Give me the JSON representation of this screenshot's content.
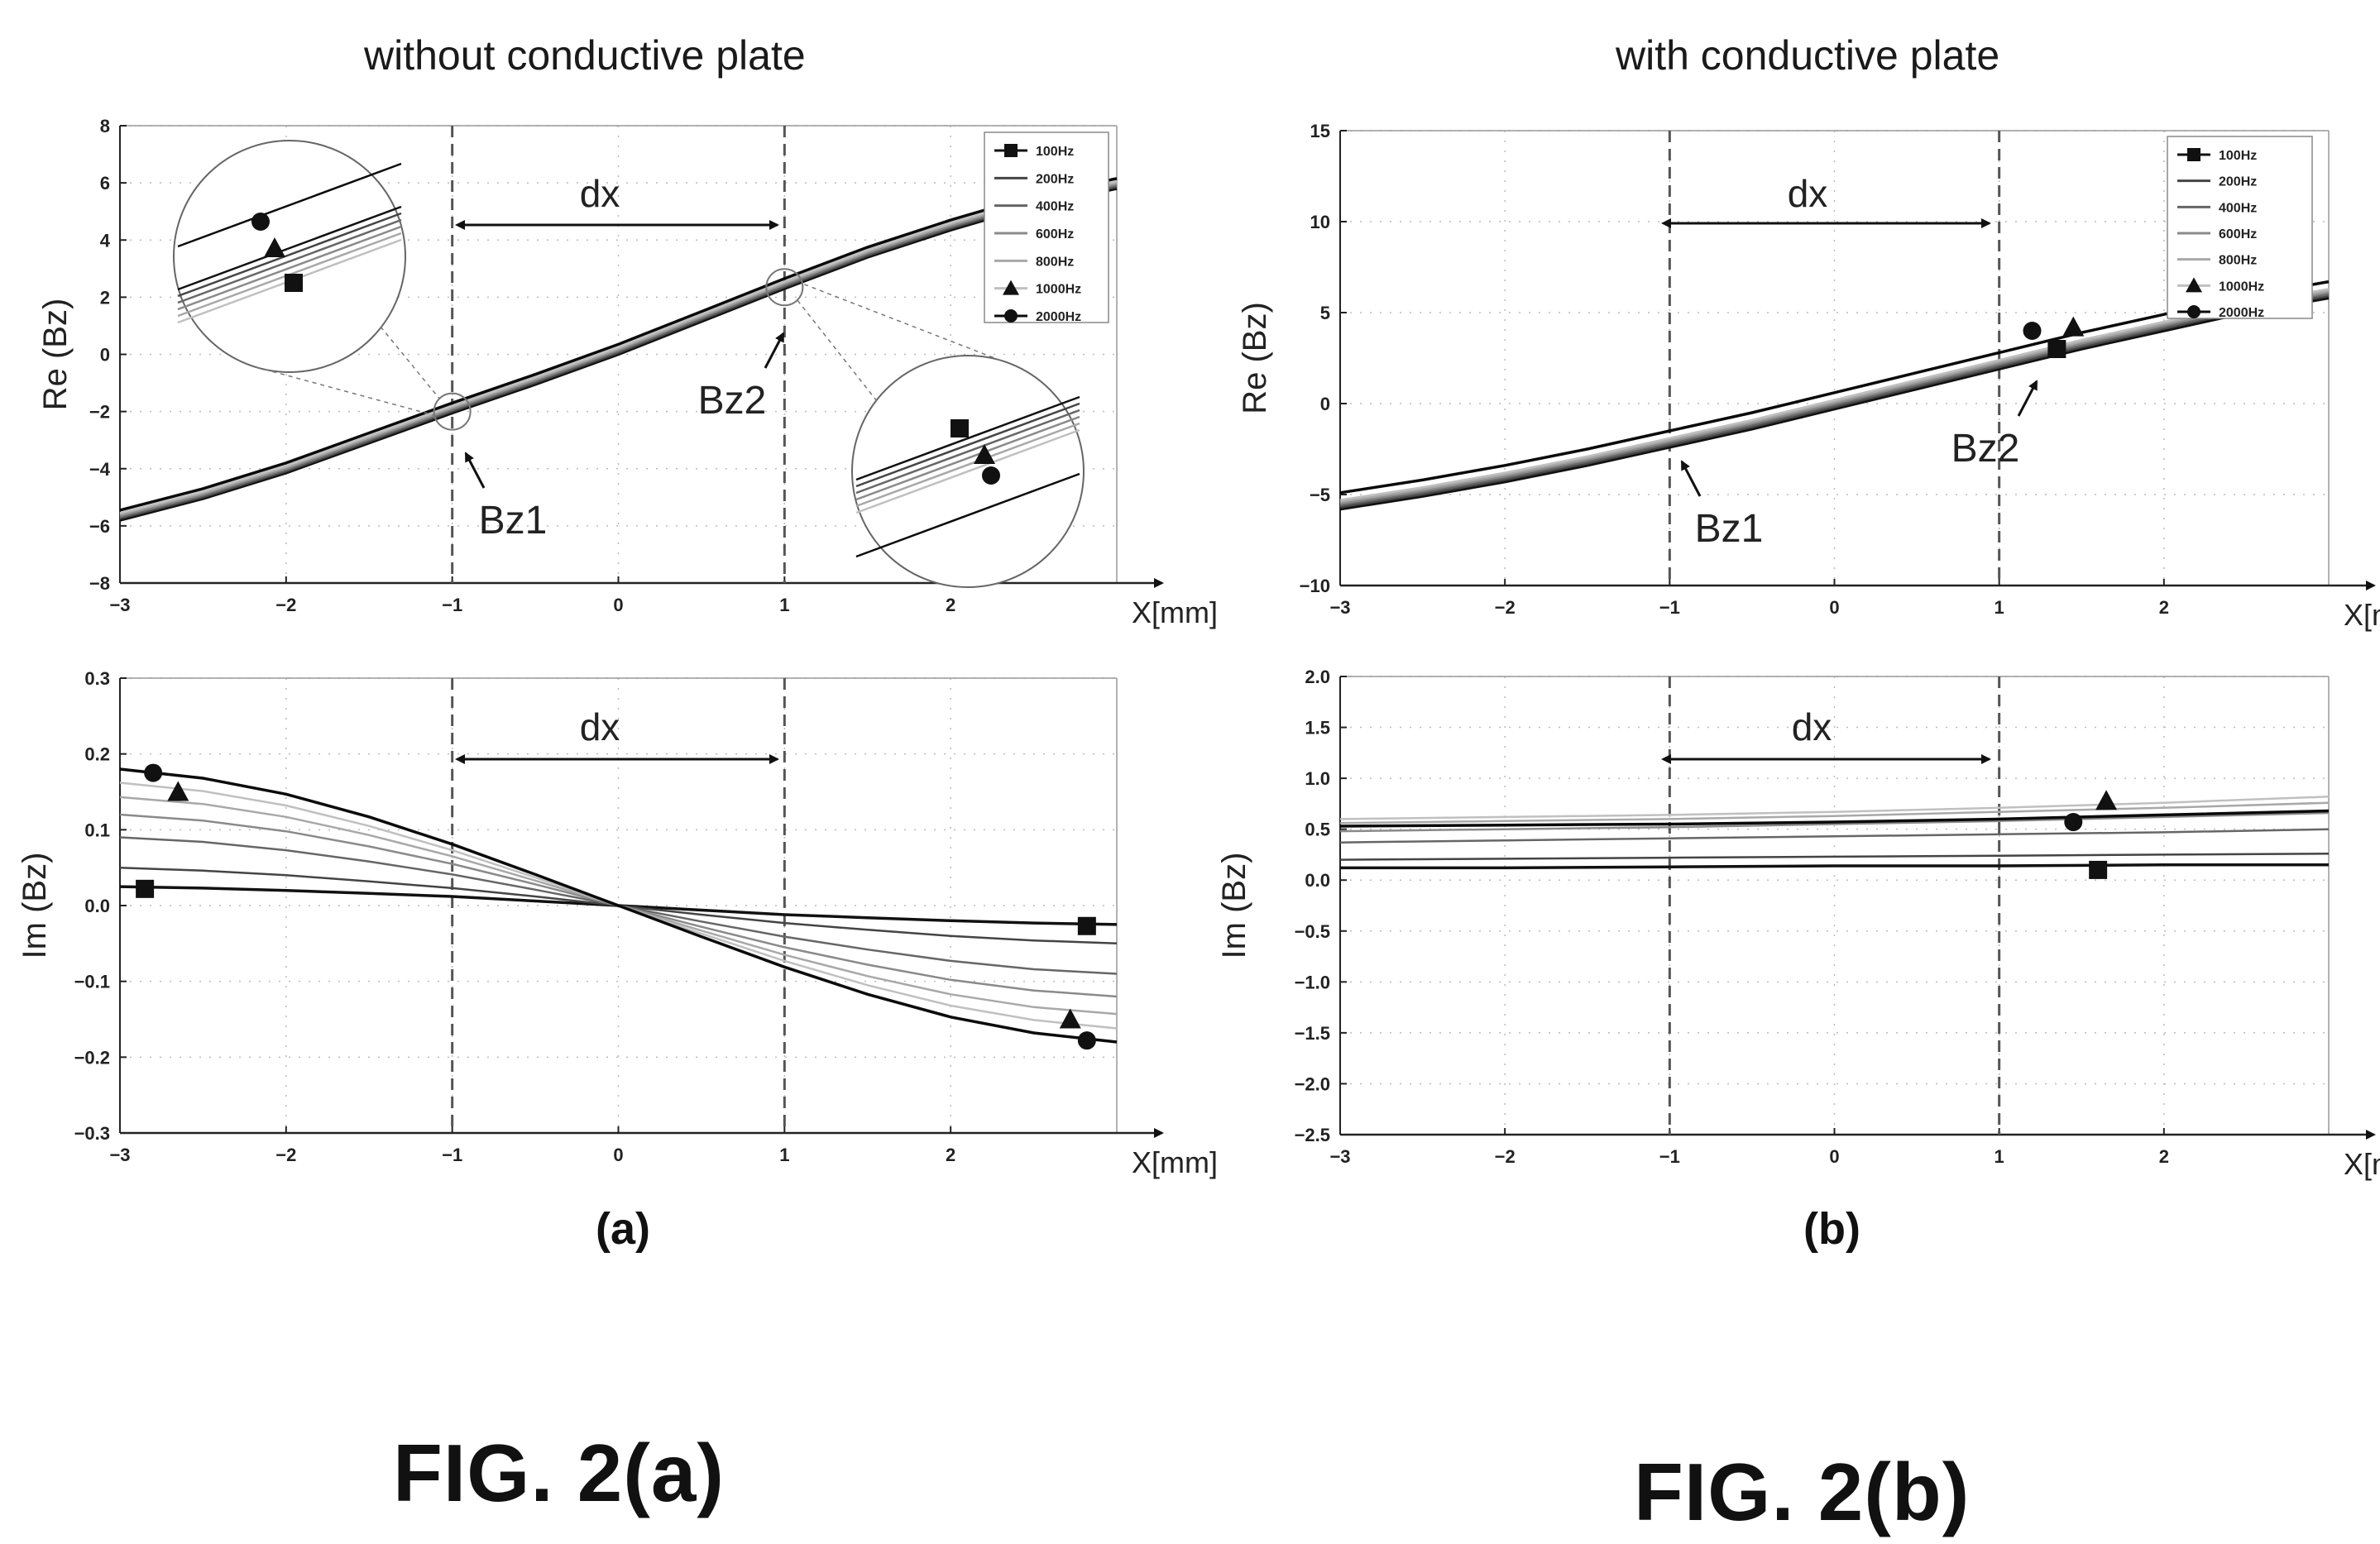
{
  "figure": {
    "left_heading": "without conductive plate",
    "right_heading": "with conductive plate",
    "panel_a_label": "(a)",
    "panel_b_label": "(b)",
    "fig_a_label": "FIG. 2(a)",
    "fig_b_label": "FIG. 2(b)"
  },
  "chart_data": [
    {
      "id": "a_re",
      "type": "line",
      "ylabel": "Re (Bz)",
      "xlabel": "X[mm]",
      "xlim": [
        -3,
        3
      ],
      "ylim": [
        -8,
        8
      ],
      "xticks": [
        -3,
        -2,
        -1,
        0,
        1,
        2
      ],
      "yticks": [
        -8,
        -6,
        -4,
        -2,
        0,
        2,
        4,
        6,
        8
      ],
      "legend": [
        "100Hz",
        "200Hz",
        "400Hz",
        "600Hz",
        "800Hz",
        "1000Hz",
        "2000Hz"
      ],
      "legend_position": "top-right",
      "x": [
        -3,
        -2.5,
        -2,
        -1.5,
        -1,
        -0.5,
        0,
        0.5,
        1,
        1.5,
        2,
        2.5,
        3
      ],
      "series": [
        {
          "name": "100Hz",
          "values": [
            -5.8,
            -5.05,
            -4.15,
            -3.1,
            -2.05,
            -1.05,
            0.0,
            1.15,
            2.3,
            3.4,
            4.35,
            5.2,
            5.8
          ]
        },
        {
          "name": "200Hz",
          "values": [
            -5.75,
            -5.0,
            -4.1,
            -3.05,
            -2.0,
            -1.0,
            0.05,
            1.2,
            2.35,
            3.45,
            4.4,
            5.25,
            5.85
          ]
        },
        {
          "name": "400Hz",
          "values": [
            -5.7,
            -4.95,
            -4.05,
            -3.0,
            -1.95,
            -0.95,
            0.1,
            1.25,
            2.4,
            3.5,
            4.45,
            5.3,
            5.9
          ]
        },
        {
          "name": "600Hz",
          "values": [
            -5.65,
            -4.9,
            -4.0,
            -2.95,
            -1.9,
            -0.9,
            0.15,
            1.3,
            2.45,
            3.55,
            4.5,
            5.35,
            5.95
          ]
        },
        {
          "name": "800Hz",
          "values": [
            -5.6,
            -4.85,
            -3.95,
            -2.9,
            -1.85,
            -0.85,
            0.2,
            1.35,
            2.5,
            3.6,
            4.55,
            5.4,
            6.0
          ]
        },
        {
          "name": "1000Hz",
          "values": [
            -5.55,
            -4.8,
            -3.9,
            -2.85,
            -1.8,
            -0.8,
            0.25,
            1.4,
            2.55,
            3.65,
            4.6,
            5.45,
            6.05
          ]
        },
        {
          "name": "2000Hz",
          "values": [
            -5.45,
            -4.7,
            -3.8,
            -2.75,
            -1.7,
            -0.7,
            0.35,
            1.5,
            2.65,
            3.75,
            4.7,
            5.55,
            6.15
          ]
        }
      ],
      "markers": [
        {
          "series": "100Hz",
          "shape": "square",
          "x": 2.02,
          "y": -2.5,
          "inset": "right"
        },
        {
          "series": "1000Hz",
          "shape": "triangle",
          "x": 2.2,
          "y": -3.4,
          "inset": "right"
        },
        {
          "series": "2000Hz",
          "shape": "circle",
          "x": 2.25,
          "y": -4.1,
          "inset": "right"
        },
        {
          "series": "100Hz",
          "shape": "square",
          "x": -1.77,
          "y": 1.9,
          "inset": "left"
        },
        {
          "series": "1000Hz",
          "shape": "triangle",
          "x": -1.85,
          "y": 3.0,
          "inset": "left"
        },
        {
          "series": "2000Hz",
          "shape": "circle",
          "x": -1.9,
          "y": 4.0,
          "inset": "left"
        }
      ],
      "vlines": [
        -1,
        1
      ],
      "annotations": {
        "dx": "dx",
        "bz1": "Bz1",
        "bz2": "Bz2"
      }
    },
    {
      "id": "a_im",
      "type": "line",
      "ylabel": "Im (Bz)",
      "xlabel": "X[mm]",
      "xlim": [
        -3,
        3
      ],
      "ylim": [
        -0.3,
        0.3
      ],
      "xticks": [
        -3,
        -2,
        -1,
        0,
        1,
        2
      ],
      "yticks": [
        -0.3,
        -0.2,
        -0.1,
        0.0,
        0.1,
        0.2,
        0.3
      ],
      "legend": [],
      "x": [
        -3,
        -2.5,
        -2,
        -1.5,
        -1,
        -0.5,
        0,
        0.5,
        1,
        1.5,
        2,
        2.5,
        3
      ],
      "series": [
        {
          "name": "100Hz",
          "values": [
            0.025,
            0.023,
            0.02,
            0.016,
            0.012,
            0.006,
            0.0,
            -0.006,
            -0.012,
            -0.016,
            -0.02,
            -0.023,
            -0.025
          ]
        },
        {
          "name": "200Hz",
          "values": [
            0.05,
            0.046,
            0.04,
            0.032,
            0.023,
            0.012,
            0.0,
            -0.012,
            -0.023,
            -0.032,
            -0.04,
            -0.046,
            -0.05
          ]
        },
        {
          "name": "400Hz",
          "values": [
            0.09,
            0.084,
            0.073,
            0.058,
            0.041,
            0.021,
            0.0,
            -0.021,
            -0.041,
            -0.058,
            -0.073,
            -0.084,
            -0.09
          ]
        },
        {
          "name": "600Hz",
          "values": [
            0.12,
            0.112,
            0.098,
            0.078,
            0.055,
            0.028,
            0.0,
            -0.028,
            -0.055,
            -0.078,
            -0.098,
            -0.112,
            -0.12
          ]
        },
        {
          "name": "800Hz",
          "values": [
            0.143,
            0.134,
            0.117,
            0.093,
            0.065,
            0.033,
            0.0,
            -0.033,
            -0.065,
            -0.093,
            -0.117,
            -0.134,
            -0.143
          ]
        },
        {
          "name": "1000Hz",
          "values": [
            0.162,
            0.151,
            0.132,
            0.105,
            0.073,
            0.037,
            0.0,
            -0.037,
            -0.073,
            -0.105,
            -0.132,
            -0.151,
            -0.162
          ]
        },
        {
          "name": "2000Hz",
          "values": [
            0.18,
            0.168,
            0.147,
            0.117,
            0.081,
            0.041,
            0.0,
            -0.041,
            -0.081,
            -0.117,
            -0.147,
            -0.168,
            -0.18
          ]
        }
      ],
      "markers": [
        {
          "series": "2000Hz",
          "shape": "circle",
          "x": -2.8,
          "y": 0.175
        },
        {
          "series": "1000Hz",
          "shape": "triangle",
          "x": -2.65,
          "y": 0.15
        },
        {
          "series": "100Hz",
          "shape": "square",
          "x": -2.85,
          "y": 0.022
        },
        {
          "series": "100Hz",
          "shape": "square",
          "x": 2.82,
          "y": -0.027
        },
        {
          "series": "1000Hz",
          "shape": "triangle",
          "x": 2.72,
          "y": -0.15
        },
        {
          "series": "2000Hz",
          "shape": "circle",
          "x": 2.82,
          "y": -0.178
        }
      ],
      "vlines": [
        -1,
        1
      ],
      "annotations": {
        "dx": "dx"
      }
    },
    {
      "id": "b_re",
      "type": "line",
      "ylabel": "Re (Bz)",
      "xlabel": "X[mm]",
      "xlim": [
        -3,
        3
      ],
      "ylim": [
        -10,
        15
      ],
      "xticks": [
        -3,
        -2,
        -1,
        0,
        1,
        2
      ],
      "yticks": [
        -10,
        -5,
        0,
        5,
        10,
        15
      ],
      "legend": [
        "100Hz",
        "200Hz",
        "400Hz",
        "600Hz",
        "800Hz",
        "1000Hz",
        "2000Hz"
      ],
      "legend_position": "top-right",
      "x": [
        -3,
        -2.5,
        -2,
        -1.5,
        -1,
        -0.5,
        0,
        0.5,
        1,
        1.5,
        2,
        2.5,
        3
      ],
      "series": [
        {
          "name": "100Hz",
          "values": [
            -5.8,
            -5.1,
            -4.3,
            -3.4,
            -2.4,
            -1.4,
            -0.3,
            0.8,
            1.9,
            3.0,
            4.0,
            5.0,
            5.8
          ]
        },
        {
          "name": "200Hz",
          "values": [
            -5.7,
            -5.0,
            -4.2,
            -3.3,
            -2.3,
            -1.3,
            -0.2,
            0.9,
            2.0,
            3.1,
            4.1,
            5.1,
            5.9
          ]
        },
        {
          "name": "400Hz",
          "values": [
            -5.6,
            -4.9,
            -4.1,
            -3.2,
            -2.2,
            -1.2,
            -0.1,
            1.0,
            2.1,
            3.2,
            4.2,
            5.2,
            6.0
          ]
        },
        {
          "name": "600Hz",
          "values": [
            -5.5,
            -4.8,
            -4.0,
            -3.1,
            -2.1,
            -1.1,
            0.0,
            1.1,
            2.2,
            3.3,
            4.3,
            5.3,
            6.1
          ]
        },
        {
          "name": "800Hz",
          "values": [
            -5.4,
            -4.7,
            -3.9,
            -3.0,
            -2.0,
            -1.0,
            0.1,
            1.2,
            2.3,
            3.4,
            4.4,
            5.4,
            6.2
          ]
        },
        {
          "name": "1000Hz",
          "values": [
            -5.3,
            -4.6,
            -3.8,
            -2.9,
            -1.9,
            -0.9,
            0.2,
            1.3,
            2.4,
            3.5,
            4.5,
            5.5,
            6.3
          ]
        },
        {
          "name": "2000Hz",
          "values": [
            -4.9,
            -4.2,
            -3.4,
            -2.5,
            -1.5,
            -0.5,
            0.6,
            1.7,
            2.8,
            3.9,
            4.9,
            5.9,
            6.7
          ]
        }
      ],
      "markers": [
        {
          "series": "2000Hz",
          "shape": "circle",
          "x": 1.2,
          "y": 4.0
        },
        {
          "series": "100Hz",
          "shape": "square",
          "x": 1.35,
          "y": 3.0
        },
        {
          "series": "1000Hz",
          "shape": "triangle",
          "x": 1.45,
          "y": 4.2
        }
      ],
      "vlines": [
        -1,
        1
      ],
      "annotations": {
        "dx": "dx",
        "bz1": "Bz1",
        "bz2": "Bz2"
      }
    },
    {
      "id": "b_im",
      "type": "line",
      "ylabel": "Im (Bz)",
      "xlabel": "X[mm]",
      "xlim": [
        -3,
        3
      ],
      "ylim": [
        -2.5,
        2.0
      ],
      "xticks": [
        -3,
        -2,
        -1,
        0,
        1,
        2
      ],
      "yticks": [
        -2.5,
        -2.0,
        -1.5,
        -1.0,
        -0.5,
        0.0,
        0.5,
        1.0,
        1.5,
        2.0
      ],
      "legend": [],
      "x": [
        -3,
        -2,
        -1,
        0,
        1,
        2,
        3
      ],
      "series": [
        {
          "name": "100Hz",
          "values": [
            0.12,
            0.12,
            0.13,
            0.14,
            0.14,
            0.15,
            0.15
          ]
        },
        {
          "name": "200Hz",
          "values": [
            0.2,
            0.21,
            0.22,
            0.23,
            0.24,
            0.25,
            0.26
          ]
        },
        {
          "name": "400Hz",
          "values": [
            0.37,
            0.39,
            0.41,
            0.43,
            0.45,
            0.47,
            0.5
          ]
        },
        {
          "name": "600Hz",
          "values": [
            0.48,
            0.5,
            0.52,
            0.55,
            0.58,
            0.62,
            0.66
          ]
        },
        {
          "name": "800Hz",
          "values": [
            0.56,
            0.58,
            0.6,
            0.63,
            0.67,
            0.71,
            0.76
          ]
        },
        {
          "name": "1000Hz",
          "values": [
            0.6,
            0.62,
            0.64,
            0.67,
            0.71,
            0.76,
            0.82
          ]
        },
        {
          "name": "2000Hz",
          "values": [
            0.53,
            0.54,
            0.55,
            0.57,
            0.6,
            0.64,
            0.68
          ]
        }
      ],
      "markers": [
        {
          "series": "2000Hz",
          "shape": "circle",
          "x": 1.45,
          "y": 0.57
        },
        {
          "series": "1000Hz",
          "shape": "triangle",
          "x": 1.65,
          "y": 0.78
        },
        {
          "series": "100Hz",
          "shape": "square",
          "x": 1.6,
          "y": 0.1
        }
      ],
      "vlines": [
        -1,
        1
      ],
      "annotations": {
        "dx": "dx"
      }
    }
  ]
}
